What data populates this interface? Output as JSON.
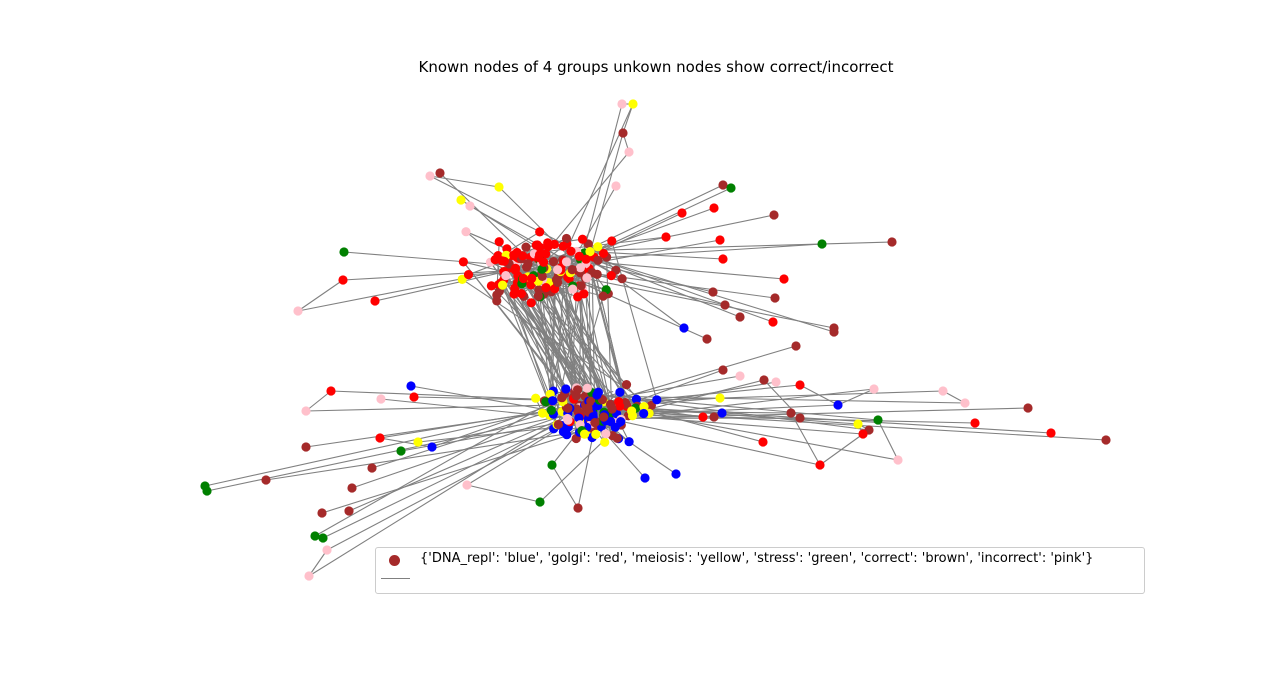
{
  "title": "Known nodes of 4 groups unkown nodes show correct/incorrect",
  "legend": {
    "node_label": "{'DNA_repl': 'blue', 'golgi': 'red', 'meiosis': 'yellow', 'stress': 'green', 'correct': 'brown', 'incorrect': 'pink'}",
    "marker_color": "#a52a2a",
    "edge_color": "#808080"
  },
  "colors": {
    "blue": "#0000ff",
    "red": "#ff0000",
    "yellow": "#ffff00",
    "green": "#008000",
    "brown": "#a52a2a",
    "pink": "#ffc0cb",
    "edge": "#808080"
  }
}
